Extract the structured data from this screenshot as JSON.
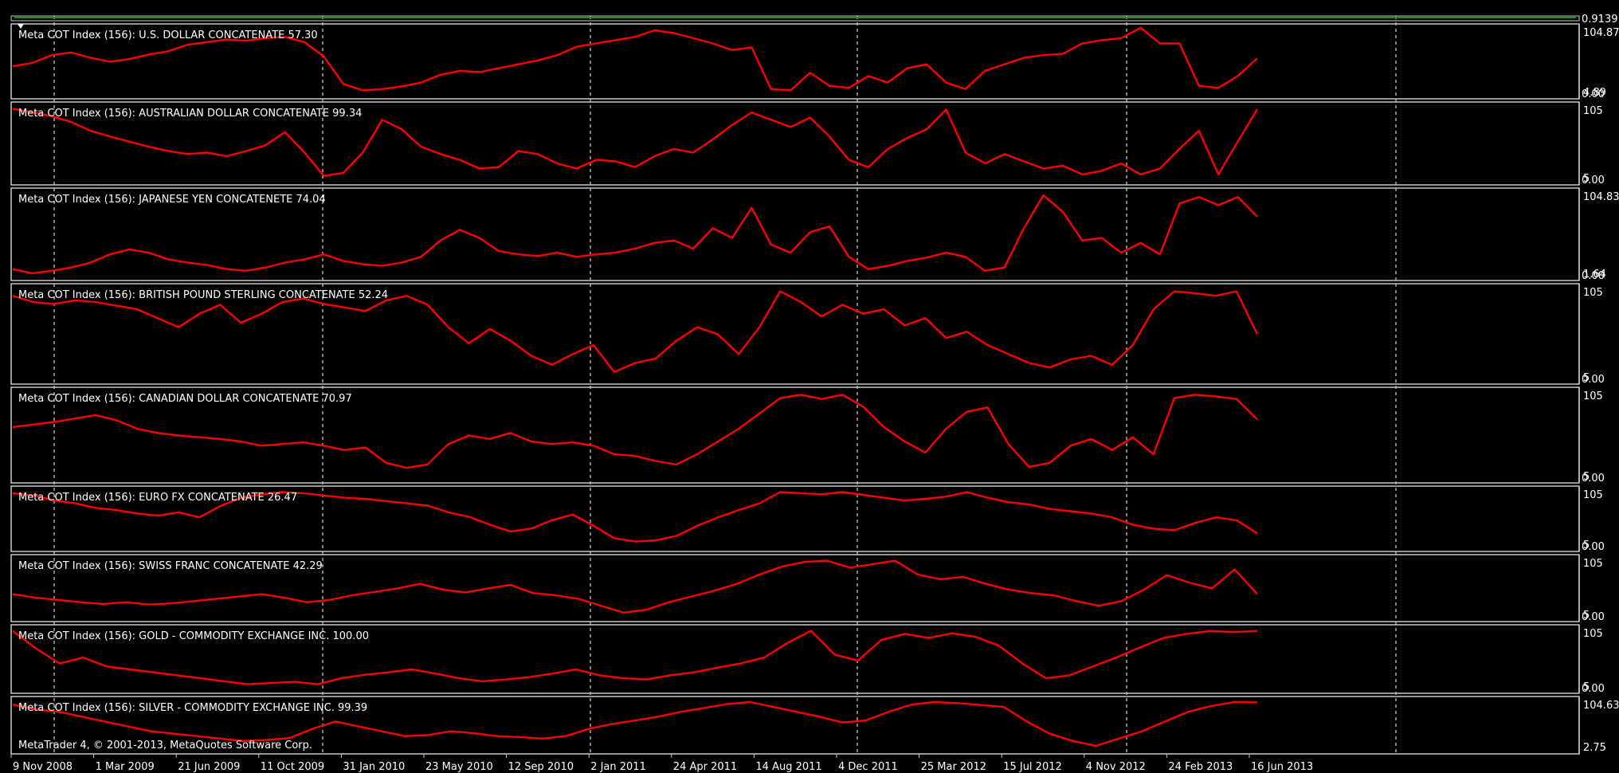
{
  "window": {
    "price_label": "0.9139",
    "copyright": "MetaTrader 4, © 2001-2013, MetaQuotes Software Corp."
  },
  "colors": {
    "background": "#000000",
    "line": "#ff0000",
    "border": "#c8c8c8",
    "grid": "#ffffff",
    "text": "#ffffff"
  },
  "time_axis": {
    "labels": [
      "9 Nov 2008",
      "1 Mar 2009",
      "21 Jun 2009",
      "11 Oct 2009",
      "31 Jan 2010",
      "23 May 2010",
      "12 Sep 2010",
      "2 Jan 2011",
      "24 Apr 2011",
      "14 Aug 2011",
      "4 Dec 2011",
      "25 Mar 2012",
      "15 Jul 2012",
      "4 Nov 2012",
      "24 Feb 2013",
      "16 Jun 2013"
    ]
  },
  "chart_data": [
    {
      "type": "line",
      "title": "Meta COT Index (156): U.S. DOLLAR CONCATENATE 57.30",
      "scale_top": "104.87",
      "scale_bottom": "4.89",
      "scale_bottom2": "0.00",
      "ylim": [
        0,
        105
      ],
      "values": [
        45,
        50,
        62,
        66,
        58,
        52,
        56,
        63,
        68,
        78,
        82,
        86,
        84,
        88,
        90,
        82,
        60,
        18,
        8,
        10,
        14,
        20,
        32,
        38,
        36,
        42,
        48,
        54,
        62,
        75,
        80,
        85,
        90,
        100,
        96,
        88,
        80,
        70,
        74,
        10,
        8,
        35,
        15,
        12,
        30,
        20,
        42,
        48,
        20,
        10,
        38,
        48,
        58,
        62,
        64,
        80,
        85,
        88,
        104,
        80,
        80,
        15,
        12,
        30,
        57.3
      ]
    },
    {
      "type": "line",
      "title": "Meta COT Index (156): AUSTRALIAN DOLLAR CONCATENATE 99.34",
      "scale_top": "105",
      "scale_bottom": "5",
      "scale_bottom2": "0.00",
      "ylim": [
        0,
        105
      ],
      "values": [
        100,
        95,
        90,
        82,
        70,
        62,
        55,
        48,
        42,
        38,
        40,
        35,
        42,
        50,
        68,
        40,
        8,
        12,
        40,
        85,
        72,
        48,
        38,
        30,
        18,
        20,
        42,
        38,
        25,
        18,
        30,
        28,
        20,
        35,
        45,
        40,
        58,
        78,
        95,
        85,
        75,
        88,
        62,
        30,
        20,
        45,
        60,
        72,
        99,
        40,
        25,
        38,
        28,
        18,
        22,
        10,
        15,
        25,
        10,
        18,
        45,
        70,
        10,
        55,
        99.34
      ]
    },
    {
      "type": "line",
      "title": "Meta COT Index (156): JAPANESE YEN CONCATENETE 74.04",
      "scale_top": "104.83",
      "scale_bottom": "1.64",
      "scale_bottom2": "0.00",
      "ylim": [
        0,
        105
      ],
      "values": [
        10,
        5,
        8,
        12,
        18,
        28,
        34,
        30,
        22,
        18,
        15,
        10,
        8,
        12,
        18,
        22,
        28,
        20,
        16,
        14,
        18,
        25,
        45,
        58,
        48,
        32,
        28,
        26,
        30,
        25,
        28,
        30,
        35,
        42,
        45,
        35,
        60,
        48,
        85,
        40,
        30,
        55,
        62,
        25,
        10,
        14,
        20,
        24,
        30,
        25,
        8,
        12,
        60,
        100,
        80,
        45,
        48,
        30,
        42,
        28,
        90,
        98,
        88,
        98,
        74.04
      ]
    },
    {
      "type": "line",
      "title": "Meta COT Index (156): BRITISH POUND STERLING CONCATENATE 52.24",
      "scale_top": "105",
      "scale_bottom": "5",
      "scale_bottom2": "0.00",
      "ylim": [
        0,
        105
      ],
      "values": [
        95,
        88,
        86,
        90,
        88,
        84,
        80,
        70,
        60,
        75,
        85,
        65,
        75,
        88,
        92,
        86,
        82,
        78,
        90,
        95,
        85,
        60,
        42,
        58,
        45,
        28,
        18,
        30,
        40,
        10,
        20,
        25,
        45,
        60,
        52,
        30,
        60,
        100,
        88,
        72,
        85,
        75,
        80,
        62,
        70,
        48,
        55,
        40,
        30,
        20,
        15,
        24,
        28,
        18,
        40,
        80,
        100,
        98,
        95,
        100,
        52.24
      ]
    },
    {
      "type": "line",
      "title": "Meta COT Index (156): CANADIAN DOLLAR CONCATENATE 70.97",
      "scale_top": "105",
      "scale_bottom": "5",
      "scale_bottom2": "0.00",
      "ylim": [
        0,
        105
      ],
      "values": [
        62,
        65,
        68,
        72,
        76,
        70,
        60,
        55,
        52,
        50,
        48,
        45,
        40,
        42,
        44,
        40,
        35,
        38,
        20,
        14,
        18,
        42,
        52,
        48,
        55,
        45,
        42,
        44,
        40,
        30,
        28,
        22,
        18,
        30,
        45,
        60,
        78,
        96,
        100,
        95,
        100,
        86,
        62,
        45,
        32,
        60,
        80,
        85,
        42,
        15,
        20,
        40,
        48,
        35,
        50,
        30,
        96,
        100,
        98,
        95,
        70.97
      ]
    },
    {
      "type": "line",
      "title": "Meta COT Index (156): EURO FX CONCATENATE 26.47",
      "scale_top": "105",
      "scale_bottom": "5",
      "scale_bottom2": "0.00",
      "ylim": [
        0,
        105
      ],
      "values": [
        98,
        94,
        85,
        80,
        72,
        68,
        62,
        58,
        64,
        55,
        75,
        90,
        96,
        100,
        98,
        94,
        90,
        88,
        84,
        80,
        76,
        64,
        56,
        42,
        30,
        35,
        50,
        60,
        40,
        18,
        12,
        14,
        22,
        40,
        55,
        68,
        80,
        100,
        98,
        96,
        100,
        95,
        90,
        85,
        88,
        92,
        100,
        90,
        82,
        78,
        70,
        66,
        62,
        55,
        42,
        35,
        32,
        45,
        55,
        50,
        26.47
      ]
    },
    {
      "type": "line",
      "title": "Meta COT Index (156): SWISS FRANC CONCATENATE 42.29",
      "scale_top": "105",
      "scale_bottom": "5",
      "scale_bottom2": "0.00",
      "ylim": [
        0,
        105
      ],
      "values": [
        42,
        36,
        32,
        28,
        25,
        28,
        24,
        26,
        30,
        34,
        38,
        42,
        36,
        28,
        32,
        40,
        46,
        52,
        60,
        50,
        45,
        52,
        58,
        44,
        40,
        34,
        22,
        10,
        15,
        28,
        38,
        48,
        60,
        76,
        90,
        98,
        100,
        88,
        94,
        100,
        76,
        68,
        72,
        60,
        50,
        44,
        40,
        30,
        22,
        30,
        50,
        75,
        62,
        52,
        85,
        42.29
      ]
    },
    {
      "type": "line",
      "title": "Meta COT Index (156): GOLD - COMMODITY EXCHANGE INC.  100.00",
      "scale_top": "105",
      "scale_bottom": "5",
      "scale_bottom2": "0.00",
      "ylim": [
        0,
        105
      ],
      "values": [
        100,
        70,
        45,
        55,
        40,
        35,
        30,
        25,
        20,
        15,
        10,
        12,
        14,
        10,
        20,
        26,
        30,
        35,
        28,
        20,
        15,
        18,
        22,
        28,
        35,
        25,
        20,
        18,
        25,
        30,
        38,
        45,
        55,
        80,
        100,
        60,
        50,
        85,
        95,
        88,
        96,
        90,
        75,
        45,
        20,
        25,
        40,
        55,
        72,
        88,
        95,
        100,
        98,
        100
      ]
    },
    {
      "type": "line",
      "title": "Meta COT Index (156): SILVER - COMMODITY EXCHANGE INC.  99.39",
      "scale_top": "104.63",
      "scale_bottom": "2.75",
      "scale_bottom2": "",
      "ylim": [
        0,
        105
      ],
      "values": [
        95,
        85,
        80,
        70,
        60,
        50,
        40,
        35,
        30,
        25,
        20,
        22,
        26,
        45,
        60,
        50,
        40,
        30,
        32,
        40,
        36,
        30,
        28,
        25,
        30,
        45,
        55,
        62,
        70,
        80,
        88,
        96,
        100,
        90,
        80,
        70,
        58,
        62,
        80,
        95,
        100,
        98,
        94,
        90,
        60,
        35,
        20,
        10,
        25,
        40,
        60,
        80,
        92,
        100,
        99.39
      ]
    }
  ]
}
